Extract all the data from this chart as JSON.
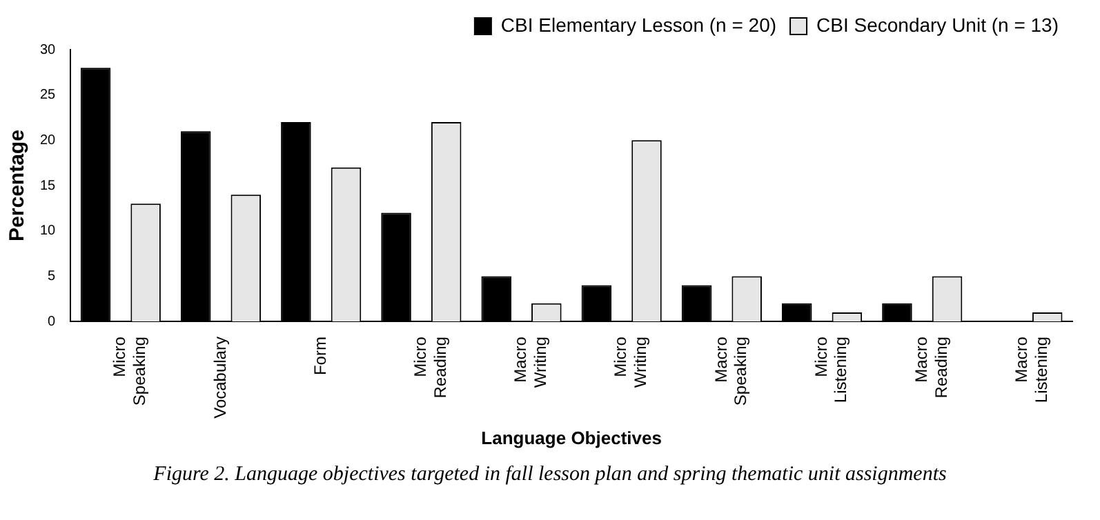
{
  "chart_data": {
    "type": "bar",
    "xlabel": "Language Objectives",
    "ylabel": "Percentage",
    "categories": [
      "Micro Speaking",
      "Vocabulary",
      "Form",
      "Micro Reading",
      "Macro Writing",
      "Micro Writing",
      "Macro Speaking",
      "Micro Listening",
      "Macro Reading",
      "Macro Listening"
    ],
    "series": [
      {
        "name": "CBI Elementary Lesson (n = 20)",
        "color": "#000000",
        "values": [
          28,
          21,
          22,
          12,
          5,
          4,
          4,
          2,
          2,
          0
        ]
      },
      {
        "name": "CBI Secondary Unit (n = 13)",
        "color": "#e6e6e6",
        "values": [
          13,
          14,
          17,
          22,
          2,
          20,
          5,
          1,
          5,
          1
        ]
      }
    ],
    "ylim": [
      0,
      30
    ],
    "yticks": [
      0,
      5,
      10,
      15,
      20,
      25,
      30
    ],
    "grid": false,
    "legend": "top right",
    "annotations": [
      "Figure 2. Language objectives targeted in fall lesson plan and spring thematic unit assignments"
    ]
  }
}
